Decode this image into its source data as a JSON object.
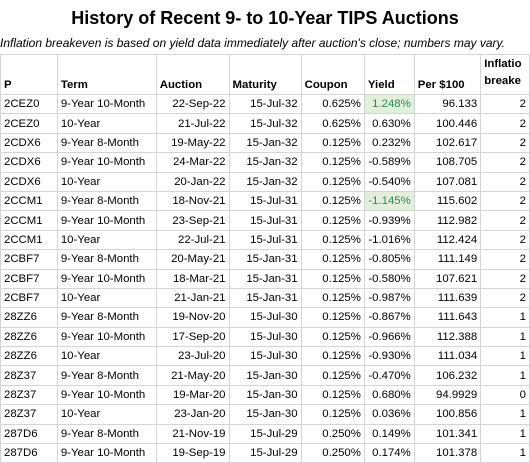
{
  "title": "History of Recent 9- to 10-Year TIPS Auctions",
  "subtitle": "Inflation breakeven is based on yield data immediately after auction's close; numbers may vary.",
  "colors": {
    "highlight_bg": "#e2efda",
    "highlight_text": "#2e8b57",
    "gridline": "#d4d4d4"
  },
  "columns": [
    "P",
    "Term",
    "Auction",
    "Maturity",
    "Coupon",
    "Yield",
    "Per $100",
    "Inflation breakeven"
  ],
  "columns_visible": [
    "P",
    "Term",
    "Auction",
    "Maturity",
    "Coupon",
    "Yield",
    "Per $100",
    "Inflatio",
    "breake"
  ],
  "rows": [
    {
      "cusip": "2CEZ0",
      "term": "9-Year 10-Month",
      "auction": "22-Sep-22",
      "maturity": "15-Jul-32",
      "coupon": "0.625%",
      "yield": "1.248%",
      "per100": "96.133",
      "be": "2",
      "highlight": true
    },
    {
      "cusip": "2CEZ0",
      "term": "10-Year",
      "auction": "21-Jul-22",
      "maturity": "15-Jul-32",
      "coupon": "0.625%",
      "yield": "0.630%",
      "per100": "100.446",
      "be": "2",
      "highlight": false
    },
    {
      "cusip": "2CDX6",
      "term": "9-Year 8-Month",
      "auction": "19-May-22",
      "maturity": "15-Jan-32",
      "coupon": "0.125%",
      "yield": "0.232%",
      "per100": "102.617",
      "be": "2",
      "highlight": false
    },
    {
      "cusip": "2CDX6",
      "term": "9-Year 10-Month",
      "auction": "24-Mar-22",
      "maturity": "15-Jan-32",
      "coupon": "0.125%",
      "yield": "-0.589%",
      "per100": "108.705",
      "be": "2",
      "highlight": false
    },
    {
      "cusip": "2CDX6",
      "term": "10-Year",
      "auction": "20-Jan-22",
      "maturity": "15-Jan-32",
      "coupon": "0.125%",
      "yield": "-0.540%",
      "per100": "107.081",
      "be": "2",
      "highlight": false
    },
    {
      "cusip": "2CCM1",
      "term": "9-Year 8-Month",
      "auction": "18-Nov-21",
      "maturity": "15-Jul-31",
      "coupon": "0.125%",
      "yield": "-1.145%",
      "per100": "115.602",
      "be": "2",
      "highlight": true
    },
    {
      "cusip": "2CCM1",
      "term": "9-Year 10-Month",
      "auction": "23-Sep-21",
      "maturity": "15-Jul-31",
      "coupon": "0.125%",
      "yield": "-0.939%",
      "per100": "112.982",
      "be": "2",
      "highlight": false
    },
    {
      "cusip": "2CCM1",
      "term": "10-Year",
      "auction": "22-Jul-21",
      "maturity": "15-Jul-31",
      "coupon": "0.125%",
      "yield": "-1.016%",
      "per100": "112.424",
      "be": "2",
      "highlight": false
    },
    {
      "cusip": "2CBF7",
      "term": "9-Year 8-Month",
      "auction": "20-May-21",
      "maturity": "15-Jan-31",
      "coupon": "0.125%",
      "yield": "-0.805%",
      "per100": "111.149",
      "be": "2",
      "highlight": false
    },
    {
      "cusip": "2CBF7",
      "term": "9-Year 10-Month",
      "auction": "18-Mar-21",
      "maturity": "15-Jan-31",
      "coupon": "0.125%",
      "yield": "-0.580%",
      "per100": "107.621",
      "be": "2",
      "highlight": false
    },
    {
      "cusip": "2CBF7",
      "term": "10-Year",
      "auction": "21-Jan-21",
      "maturity": "15-Jan-31",
      "coupon": "0.125%",
      "yield": "-0.987%",
      "per100": "111.639",
      "be": "2",
      "highlight": false
    },
    {
      "cusip": "28ZZ6",
      "term": "9-Year 8-Month",
      "auction": "19-Nov-20",
      "maturity": "15-Jul-30",
      "coupon": "0.125%",
      "yield": "-0.867%",
      "per100": "111.643",
      "be": "1",
      "highlight": false
    },
    {
      "cusip": "28ZZ6",
      "term": "9-Year 10-Month",
      "auction": "17-Sep-20",
      "maturity": "15-Jul-30",
      "coupon": "0.125%",
      "yield": "-0.966%",
      "per100": "112.388",
      "be": "1",
      "highlight": false
    },
    {
      "cusip": "28ZZ6",
      "term": "10-Year",
      "auction": "23-Jul-20",
      "maturity": "15-Jul-30",
      "coupon": "0.125%",
      "yield": "-0.930%",
      "per100": "111.034",
      "be": "1",
      "highlight": false
    },
    {
      "cusip": "28Z37",
      "term": "9-Year 8-Month",
      "auction": "21-May-20",
      "maturity": "15-Jan-30",
      "coupon": "0.125%",
      "yield": "-0.470%",
      "per100": "106.232",
      "be": "1",
      "highlight": false
    },
    {
      "cusip": "28Z37",
      "term": "9-Year 10-Month",
      "auction": "19-Mar-20",
      "maturity": "15-Jan-30",
      "coupon": "0.125%",
      "yield": "0.680%",
      "per100": "94.9929",
      "be": "0",
      "highlight": false
    },
    {
      "cusip": "28Z37",
      "term": "10-Year",
      "auction": "23-Jan-20",
      "maturity": "15-Jan-30",
      "coupon": "0.125%",
      "yield": "0.036%",
      "per100": "100.856",
      "be": "1",
      "highlight": false
    },
    {
      "cusip": "287D6",
      "term": "9-Year 8-Month",
      "auction": "21-Nov-19",
      "maturity": "15-Jul-29",
      "coupon": "0.250%",
      "yield": "0.149%",
      "per100": "101.341",
      "be": "1",
      "highlight": false
    },
    {
      "cusip": "287D6",
      "term": "9-Year 10-Month",
      "auction": "19-Sep-19",
      "maturity": "15-Jul-29",
      "coupon": "0.250%",
      "yield": "0.174%",
      "per100": "101.378",
      "be": "1",
      "highlight": false
    }
  ]
}
